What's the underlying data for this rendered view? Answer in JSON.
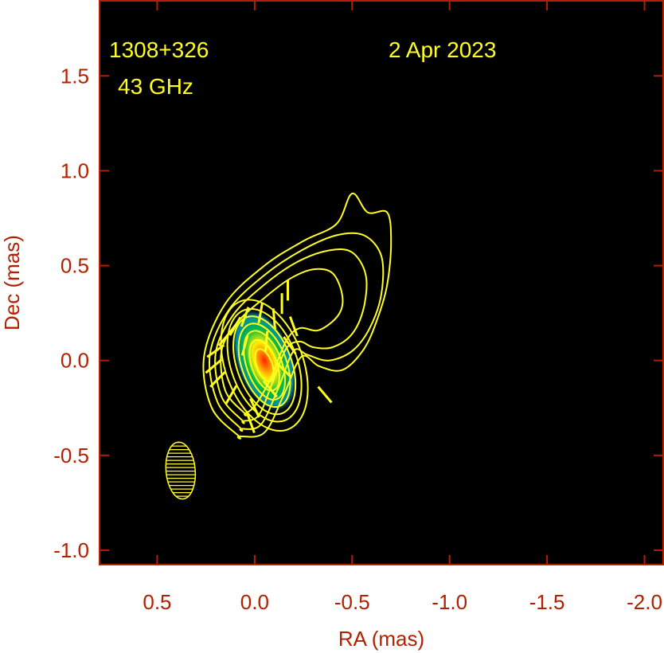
{
  "chart_data": {
    "type": "contour",
    "source": "1308+326",
    "frequency": "43 GHz",
    "date": "2 Apr 2023",
    "xlabel": "RA (mas)",
    "ylabel": "Dec (mas)",
    "xlim": [
      0.8,
      -2.1
    ],
    "ylim": [
      -1.08,
      1.9
    ],
    "x_ticks": [
      {
        "value": 0.5,
        "label": "0.5"
      },
      {
        "value": 0.0,
        "label": "0.0"
      },
      {
        "value": -0.5,
        "label": "-0.5"
      },
      {
        "value": -1.0,
        "label": "-1.0"
      },
      {
        "value": -1.5,
        "label": "-1.5"
      },
      {
        "value": -2.0,
        "label": "-2.0"
      }
    ],
    "y_ticks": [
      {
        "value": 1.5,
        "label": "1.5"
      },
      {
        "value": 1.0,
        "label": "1.0"
      },
      {
        "value": 0.5,
        "label": "0.5"
      },
      {
        "value": 0.0,
        "label": "0.0"
      },
      {
        "value": -0.5,
        "label": "-0.5"
      },
      {
        "value": -1.0,
        "label": "-1.0"
      }
    ],
    "core": {
      "ra": -0.05,
      "dec": 0.0
    },
    "jet_contours": [
      [
        [
          0.08,
          -0.4
        ],
        [
          0.22,
          -0.25
        ],
        [
          0.26,
          0.02
        ],
        [
          0.15,
          0.3
        ],
        [
          -0.05,
          0.5
        ],
        [
          -0.25,
          0.63
        ],
        [
          -0.42,
          0.72
        ],
        [
          -0.5,
          0.88
        ],
        [
          -0.58,
          0.78
        ],
        [
          -0.68,
          0.78
        ],
        [
          -0.7,
          0.62
        ],
        [
          -0.68,
          0.4
        ],
        [
          -0.63,
          0.22
        ],
        [
          -0.56,
          0.06
        ],
        [
          -0.45,
          -0.05
        ],
        [
          -0.33,
          -0.03
        ],
        [
          -0.24,
          0.02
        ],
        [
          -0.15,
          -0.18
        ],
        [
          -0.05,
          -0.38
        ],
        [
          0.08,
          -0.4
        ]
      ],
      [
        [
          0.07,
          -0.36
        ],
        [
          0.19,
          -0.22
        ],
        [
          0.23,
          0.03
        ],
        [
          0.13,
          0.27
        ],
        [
          -0.05,
          0.45
        ],
        [
          -0.24,
          0.58
        ],
        [
          -0.42,
          0.66
        ],
        [
          -0.56,
          0.66
        ],
        [
          -0.65,
          0.55
        ],
        [
          -0.65,
          0.35
        ],
        [
          -0.59,
          0.17
        ],
        [
          -0.5,
          0.05
        ],
        [
          -0.38,
          0.0
        ],
        [
          -0.27,
          0.03
        ],
        [
          -0.2,
          0.05
        ],
        [
          -0.12,
          -0.15
        ],
        [
          -0.03,
          -0.34
        ],
        [
          0.07,
          -0.36
        ]
      ],
      [
        [
          0.06,
          -0.32
        ],
        [
          0.17,
          -0.19
        ],
        [
          0.2,
          0.04
        ],
        [
          0.11,
          0.24
        ],
        [
          -0.05,
          0.4
        ],
        [
          -0.22,
          0.52
        ],
        [
          -0.38,
          0.58
        ],
        [
          -0.5,
          0.57
        ],
        [
          -0.57,
          0.45
        ],
        [
          -0.56,
          0.28
        ],
        [
          -0.5,
          0.14
        ],
        [
          -0.4,
          0.07
        ],
        [
          -0.3,
          0.07
        ],
        [
          -0.23,
          0.1
        ],
        [
          -0.16,
          0.06
        ],
        [
          -0.09,
          -0.12
        ],
        [
          -0.02,
          -0.29
        ],
        [
          0.06,
          -0.32
        ]
      ],
      [
        [
          0.05,
          -0.28
        ],
        [
          0.15,
          -0.16
        ],
        [
          0.17,
          0.05
        ],
        [
          0.09,
          0.2
        ],
        [
          -0.05,
          0.33
        ],
        [
          -0.18,
          0.43
        ],
        [
          -0.3,
          0.48
        ],
        [
          -0.4,
          0.46
        ],
        [
          -0.45,
          0.34
        ],
        [
          -0.43,
          0.24
        ],
        [
          -0.33,
          0.16
        ],
        [
          -0.23,
          0.17
        ],
        [
          -0.16,
          0.1
        ],
        [
          -0.08,
          -0.1
        ],
        [
          0.0,
          -0.24
        ],
        [
          0.05,
          -0.28
        ]
      ]
    ],
    "core_contours": [
      {
        "rx": 0.2,
        "ry": 0.36
      },
      {
        "rx": 0.17,
        "ry": 0.31
      },
      {
        "rx": 0.14,
        "ry": 0.27
      },
      {
        "rx": 0.115,
        "ry": 0.23
      },
      {
        "rx": 0.09,
        "ry": 0.19
      },
      {
        "rx": 0.065,
        "ry": 0.14
      },
      {
        "rx": 0.04,
        "ry": 0.09
      }
    ],
    "core_position_angle_deg": -20,
    "evpa_vectors": [
      {
        "ra": 0.2,
        "dec": 0.05,
        "angle": 55
      },
      {
        "ra": 0.21,
        "dec": -0.03,
        "angle": 50
      },
      {
        "ra": 0.19,
        "dec": -0.1,
        "angle": 45
      },
      {
        "ra": 0.15,
        "dec": 0.12,
        "angle": 40
      },
      {
        "ra": 0.1,
        "dec": 0.18,
        "angle": 30
      },
      {
        "ra": 0.05,
        "dec": 0.23,
        "angle": 20
      },
      {
        "ra": -0.03,
        "dec": 0.25,
        "angle": 10
      },
      {
        "ra": -0.1,
        "dec": 0.22,
        "angle": -5
      },
      {
        "ra": -0.14,
        "dec": 0.3,
        "angle": 0
      },
      {
        "ra": -0.17,
        "dec": 0.37,
        "angle": 0
      },
      {
        "ra": -0.2,
        "dec": 0.18,
        "angle": -20
      },
      {
        "ra": -0.18,
        "dec": 0.08,
        "angle": -35
      },
      {
        "ra": -0.15,
        "dec": -0.05,
        "angle": -45
      },
      {
        "ra": -0.08,
        "dec": -0.15,
        "angle": -40
      },
      {
        "ra": 0.0,
        "dec": -0.25,
        "angle": -25
      },
      {
        "ra": 0.02,
        "dec": -0.33,
        "angle": -20
      },
      {
        "ra": 0.12,
        "dec": -0.18,
        "angle": 30
      },
      {
        "ra": 0.05,
        "dec": 0.08,
        "angle": 15
      },
      {
        "ra": -0.06,
        "dec": 0.1,
        "angle": 5
      },
      {
        "ra": -0.36,
        "dec": -0.18,
        "angle": -40
      }
    ],
    "beam": {
      "ra": 0.38,
      "dec": -0.58,
      "major_mas": 0.3,
      "minor_mas": 0.15,
      "pa_deg": -5
    },
    "colors": {
      "background": "#000000",
      "contours": "#ffff22",
      "axes": "#b22000",
      "annotation": "#ffff22"
    }
  }
}
